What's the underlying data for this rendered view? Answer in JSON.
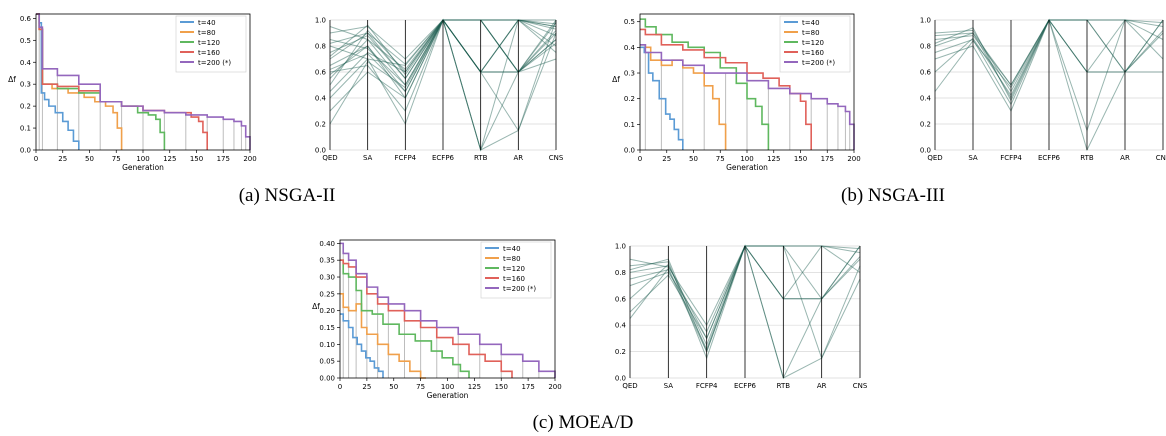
{
  "captions": [
    "(a) NSGA-II",
    "(b) NSGA-III",
    "(c) MOEA/D"
  ],
  "series_colors": {
    "t=40": "#5b9bd5",
    "t=80": "#f0a04b",
    "t=120": "#5fb85f",
    "t=160": "#e0615a",
    "t=200 (*)": "#9467bd"
  },
  "chart_data": [
    {
      "panel": "a",
      "type": "line",
      "xlabel": "Generation",
      "ylabel": "Δf",
      "xlim": [
        0,
        200
      ],
      "ylim": [
        0,
        0.62
      ],
      "xticks": [
        "0",
        "25",
        "50",
        "75",
        "100",
        "125",
        "150",
        "175",
        "200"
      ],
      "yticks": [
        "0.0",
        "0.1",
        "0.2",
        "0.3",
        "0.4",
        "0.5",
        "0.6"
      ],
      "legend": "top-right",
      "series": [
        {
          "name": "t=40",
          "x": [
            0,
            3,
            5,
            8,
            12,
            18,
            25,
            30,
            35,
            40
          ],
          "y": [
            0.62,
            0.58,
            0.26,
            0.23,
            0.2,
            0.17,
            0.13,
            0.09,
            0.04,
            0.0
          ]
        },
        {
          "name": "t=80",
          "x": [
            0,
            3,
            6,
            15,
            30,
            45,
            55,
            65,
            72,
            76,
            80
          ],
          "y": [
            0.62,
            0.55,
            0.3,
            0.28,
            0.26,
            0.24,
            0.22,
            0.2,
            0.17,
            0.1,
            0.0
          ]
        },
        {
          "name": "t=120",
          "x": [
            0,
            3,
            6,
            20,
            40,
            60,
            80,
            95,
            105,
            112,
            116,
            120
          ],
          "y": [
            0.62,
            0.55,
            0.3,
            0.28,
            0.26,
            0.22,
            0.2,
            0.17,
            0.16,
            0.14,
            0.08,
            0.0
          ]
        },
        {
          "name": "t=160",
          "x": [
            0,
            3,
            6,
            20,
            40,
            60,
            80,
            100,
            120,
            135,
            145,
            152,
            156,
            160
          ],
          "y": [
            0.62,
            0.55,
            0.3,
            0.29,
            0.27,
            0.22,
            0.2,
            0.18,
            0.17,
            0.17,
            0.15,
            0.13,
            0.08,
            0.0
          ]
        },
        {
          "name": "t=200 (*)",
          "x": [
            0,
            3,
            6,
            20,
            40,
            60,
            80,
            100,
            120,
            140,
            160,
            175,
            185,
            192,
            196,
            200
          ],
          "y": [
            0.62,
            0.56,
            0.37,
            0.34,
            0.3,
            0.22,
            0.2,
            0.18,
            0.17,
            0.16,
            0.15,
            0.14,
            0.13,
            0.11,
            0.06,
            0.0
          ]
        }
      ]
    },
    {
      "panel": "a",
      "type": "parallel",
      "axes": [
        "QED",
        "SA",
        "FCFP4",
        "ECFP6",
        "RTB",
        "AR",
        "CNS"
      ],
      "ylim": [
        0,
        1.0
      ],
      "yticks": [
        "0.0",
        "0.2",
        "0.4",
        "0.6",
        "0.8",
        "1.0"
      ],
      "lines": [
        [
          0.45,
          0.75,
          0.6,
          1.0,
          1.0,
          1.0,
          0.95
        ],
        [
          0.55,
          0.85,
          0.5,
          1.0,
          0.6,
          0.6,
          0.85
        ],
        [
          0.65,
          0.8,
          0.45,
          1.0,
          0.0,
          0.15,
          0.9
        ],
        [
          0.7,
          0.9,
          0.55,
          1.0,
          1.0,
          0.6,
          1.0
        ],
        [
          0.8,
          0.7,
          0.65,
          1.0,
          0.6,
          1.0,
          0.75
        ],
        [
          0.3,
          0.6,
          0.4,
          1.0,
          1.0,
          0.6,
          0.98
        ],
        [
          0.9,
          0.95,
          0.7,
          1.0,
          0.0,
          1.0,
          0.8
        ],
        [
          0.6,
          0.65,
          0.3,
          1.0,
          0.6,
          0.6,
          0.92
        ],
        [
          0.75,
          0.88,
          0.55,
          1.0,
          1.0,
          1.0,
          0.88
        ],
        [
          0.5,
          0.92,
          0.6,
          1.0,
          0.6,
          0.15,
          1.0
        ],
        [
          0.85,
          0.78,
          0.5,
          1.0,
          1.0,
          0.6,
          0.7
        ],
        [
          0.4,
          0.7,
          0.2,
          1.0,
          0.6,
          1.0,
          0.95
        ],
        [
          0.95,
          0.85,
          0.62,
          1.0,
          1.0,
          1.0,
          0.97
        ],
        [
          0.62,
          0.74,
          0.45,
          1.0,
          0.0,
          0.6,
          0.85
        ],
        [
          0.72,
          0.96,
          0.58,
          1.0,
          0.6,
          1.0,
          1.0
        ],
        [
          0.2,
          0.68,
          0.48,
          1.0,
          1.0,
          0.6,
          0.9
        ],
        [
          0.58,
          0.8,
          0.4,
          1.0,
          0.6,
          0.6,
          0.82
        ],
        [
          0.82,
          0.9,
          0.66,
          1.0,
          1.0,
          1.0,
          0.93
        ]
      ]
    },
    {
      "panel": "b",
      "type": "line",
      "xlabel": "Generation",
      "ylabel": "Δf",
      "xlim": [
        0,
        200
      ],
      "ylim": [
        0,
        0.53
      ],
      "xticks": [
        "0",
        "25",
        "50",
        "75",
        "100",
        "125",
        "150",
        "175",
        "200"
      ],
      "yticks": [
        "0.0",
        "0.1",
        "0.2",
        "0.3",
        "0.4",
        "0.5"
      ],
      "legend": "top-right",
      "series": [
        {
          "name": "t=40",
          "x": [
            0,
            4,
            8,
            12,
            18,
            24,
            28,
            32,
            36,
            40
          ],
          "y": [
            0.4,
            0.38,
            0.3,
            0.27,
            0.2,
            0.14,
            0.12,
            0.08,
            0.04,
            0.0
          ]
        },
        {
          "name": "t=80",
          "x": [
            0,
            5,
            10,
            20,
            30,
            40,
            50,
            60,
            68,
            74,
            80
          ],
          "y": [
            0.41,
            0.4,
            0.35,
            0.33,
            0.35,
            0.32,
            0.3,
            0.25,
            0.2,
            0.1,
            0.0
          ]
        },
        {
          "name": "t=120",
          "x": [
            0,
            5,
            15,
            30,
            45,
            60,
            75,
            90,
            100,
            108,
            114,
            120
          ],
          "y": [
            0.51,
            0.48,
            0.45,
            0.42,
            0.4,
            0.38,
            0.32,
            0.26,
            0.2,
            0.17,
            0.1,
            0.0
          ]
        },
        {
          "name": "t=160",
          "x": [
            0,
            5,
            20,
            40,
            60,
            80,
            100,
            115,
            130,
            140,
            150,
            155,
            160
          ],
          "y": [
            0.47,
            0.45,
            0.41,
            0.39,
            0.36,
            0.34,
            0.3,
            0.28,
            0.25,
            0.22,
            0.19,
            0.1,
            0.0
          ]
        },
        {
          "name": "t=200 (*)",
          "x": [
            0,
            5,
            20,
            40,
            60,
            80,
            100,
            120,
            140,
            160,
            175,
            185,
            192,
            196,
            200
          ],
          "y": [
            0.41,
            0.38,
            0.35,
            0.33,
            0.3,
            0.3,
            0.27,
            0.24,
            0.22,
            0.2,
            0.18,
            0.17,
            0.15,
            0.1,
            0.0
          ]
        }
      ]
    },
    {
      "panel": "b",
      "type": "parallel",
      "axes": [
        "QED",
        "SA",
        "FCFP4",
        "ECFP6",
        "RTB",
        "AR",
        "CNS"
      ],
      "ylim": [
        0,
        1.0
      ],
      "yticks": [
        "0.0",
        "0.2",
        "0.4",
        "0.6",
        "0.8",
        "1.0"
      ],
      "lines": [
        [
          0.8,
          0.9,
          0.4,
          1.0,
          1.0,
          1.0,
          0.95
        ],
        [
          0.85,
          0.88,
          0.5,
          1.0,
          0.6,
          0.6,
          0.9
        ],
        [
          0.75,
          0.85,
          0.35,
          1.0,
          1.0,
          0.6,
          1.0
        ],
        [
          0.9,
          0.92,
          0.45,
          1.0,
          0.15,
          1.0,
          0.85
        ],
        [
          0.7,
          0.8,
          0.3,
          1.0,
          0.6,
          1.0,
          0.7
        ],
        [
          0.88,
          0.9,
          0.5,
          1.0,
          1.0,
          1.0,
          0.98
        ],
        [
          0.6,
          0.86,
          0.42,
          1.0,
          0.0,
          0.6,
          0.92
        ],
        [
          0.82,
          0.94,
          0.38,
          1.0,
          1.0,
          0.6,
          1.0
        ],
        [
          0.45,
          0.84,
          0.48,
          1.0,
          0.6,
          0.6,
          0.6
        ]
      ]
    },
    {
      "panel": "c",
      "type": "line",
      "xlabel": "Generation",
      "ylabel": "Δf",
      "xlim": [
        0,
        200
      ],
      "ylim": [
        0,
        0.41
      ],
      "xticks": [
        "0",
        "25",
        "50",
        "75",
        "100",
        "125",
        "150",
        "175",
        "200"
      ],
      "yticks": [
        "0.00",
        "0.05",
        "0.10",
        "0.15",
        "0.20",
        "0.25",
        "0.30",
        "0.35",
        "0.40"
      ],
      "legend": "top-right",
      "series": [
        {
          "name": "t=40",
          "x": [
            0,
            3,
            8,
            12,
            16,
            20,
            24,
            28,
            32,
            36,
            40
          ],
          "y": [
            0.19,
            0.17,
            0.15,
            0.12,
            0.1,
            0.08,
            0.06,
            0.05,
            0.03,
            0.02,
            0.0
          ]
        },
        {
          "name": "t=80",
          "x": [
            0,
            3,
            8,
            15,
            20,
            25,
            35,
            45,
            55,
            65,
            75,
            80
          ],
          "y": [
            0.25,
            0.21,
            0.2,
            0.22,
            0.15,
            0.13,
            0.1,
            0.07,
            0.05,
            0.02,
            0.0,
            0.0
          ]
        },
        {
          "name": "t=120",
          "x": [
            0,
            3,
            8,
            15,
            20,
            30,
            40,
            55,
            70,
            85,
            95,
            105,
            112,
            120
          ],
          "y": [
            0.35,
            0.31,
            0.3,
            0.26,
            0.2,
            0.19,
            0.16,
            0.13,
            0.11,
            0.08,
            0.06,
            0.04,
            0.02,
            0.0
          ]
        },
        {
          "name": "t=160",
          "x": [
            0,
            3,
            8,
            15,
            25,
            35,
            45,
            60,
            75,
            90,
            105,
            120,
            135,
            150,
            160
          ],
          "y": [
            0.35,
            0.34,
            0.33,
            0.3,
            0.25,
            0.22,
            0.2,
            0.17,
            0.15,
            0.12,
            0.1,
            0.07,
            0.05,
            0.02,
            0.0
          ]
        },
        {
          "name": "t=200 (*)",
          "x": [
            0,
            3,
            8,
            15,
            25,
            35,
            45,
            60,
            75,
            90,
            110,
            130,
            150,
            170,
            185,
            200
          ],
          "y": [
            0.4,
            0.37,
            0.35,
            0.31,
            0.27,
            0.24,
            0.22,
            0.2,
            0.17,
            0.15,
            0.13,
            0.1,
            0.07,
            0.05,
            0.02,
            0.0
          ]
        }
      ]
    },
    {
      "panel": "c",
      "type": "parallel",
      "axes": [
        "QED",
        "SA",
        "FCFP4",
        "ECFP6",
        "RTB",
        "AR",
        "CNS"
      ],
      "ylim": [
        0,
        1.0
      ],
      "yticks": [
        "0.0",
        "0.2",
        "0.4",
        "0.6",
        "0.8",
        "1.0"
      ],
      "lines": [
        [
          0.8,
          0.85,
          0.3,
          1.0,
          1.0,
          1.0,
          0.95
        ],
        [
          0.75,
          0.82,
          0.2,
          1.0,
          0.6,
          0.6,
          0.9
        ],
        [
          0.85,
          0.88,
          0.15,
          1.0,
          1.0,
          0.6,
          1.0
        ],
        [
          0.7,
          0.8,
          0.35,
          1.0,
          0.0,
          0.15,
          0.85
        ],
        [
          0.6,
          0.86,
          0.25,
          1.0,
          0.6,
          1.0,
          0.8
        ],
        [
          0.9,
          0.84,
          0.4,
          1.0,
          1.0,
          1.0,
          0.98
        ],
        [
          0.5,
          0.78,
          0.3,
          1.0,
          0.6,
          0.6,
          0.92
        ],
        [
          0.82,
          0.9,
          0.2,
          1.0,
          0.0,
          0.6,
          1.0
        ],
        [
          0.45,
          0.83,
          0.22,
          1.0,
          1.0,
          0.15,
          0.75
        ]
      ]
    }
  ]
}
